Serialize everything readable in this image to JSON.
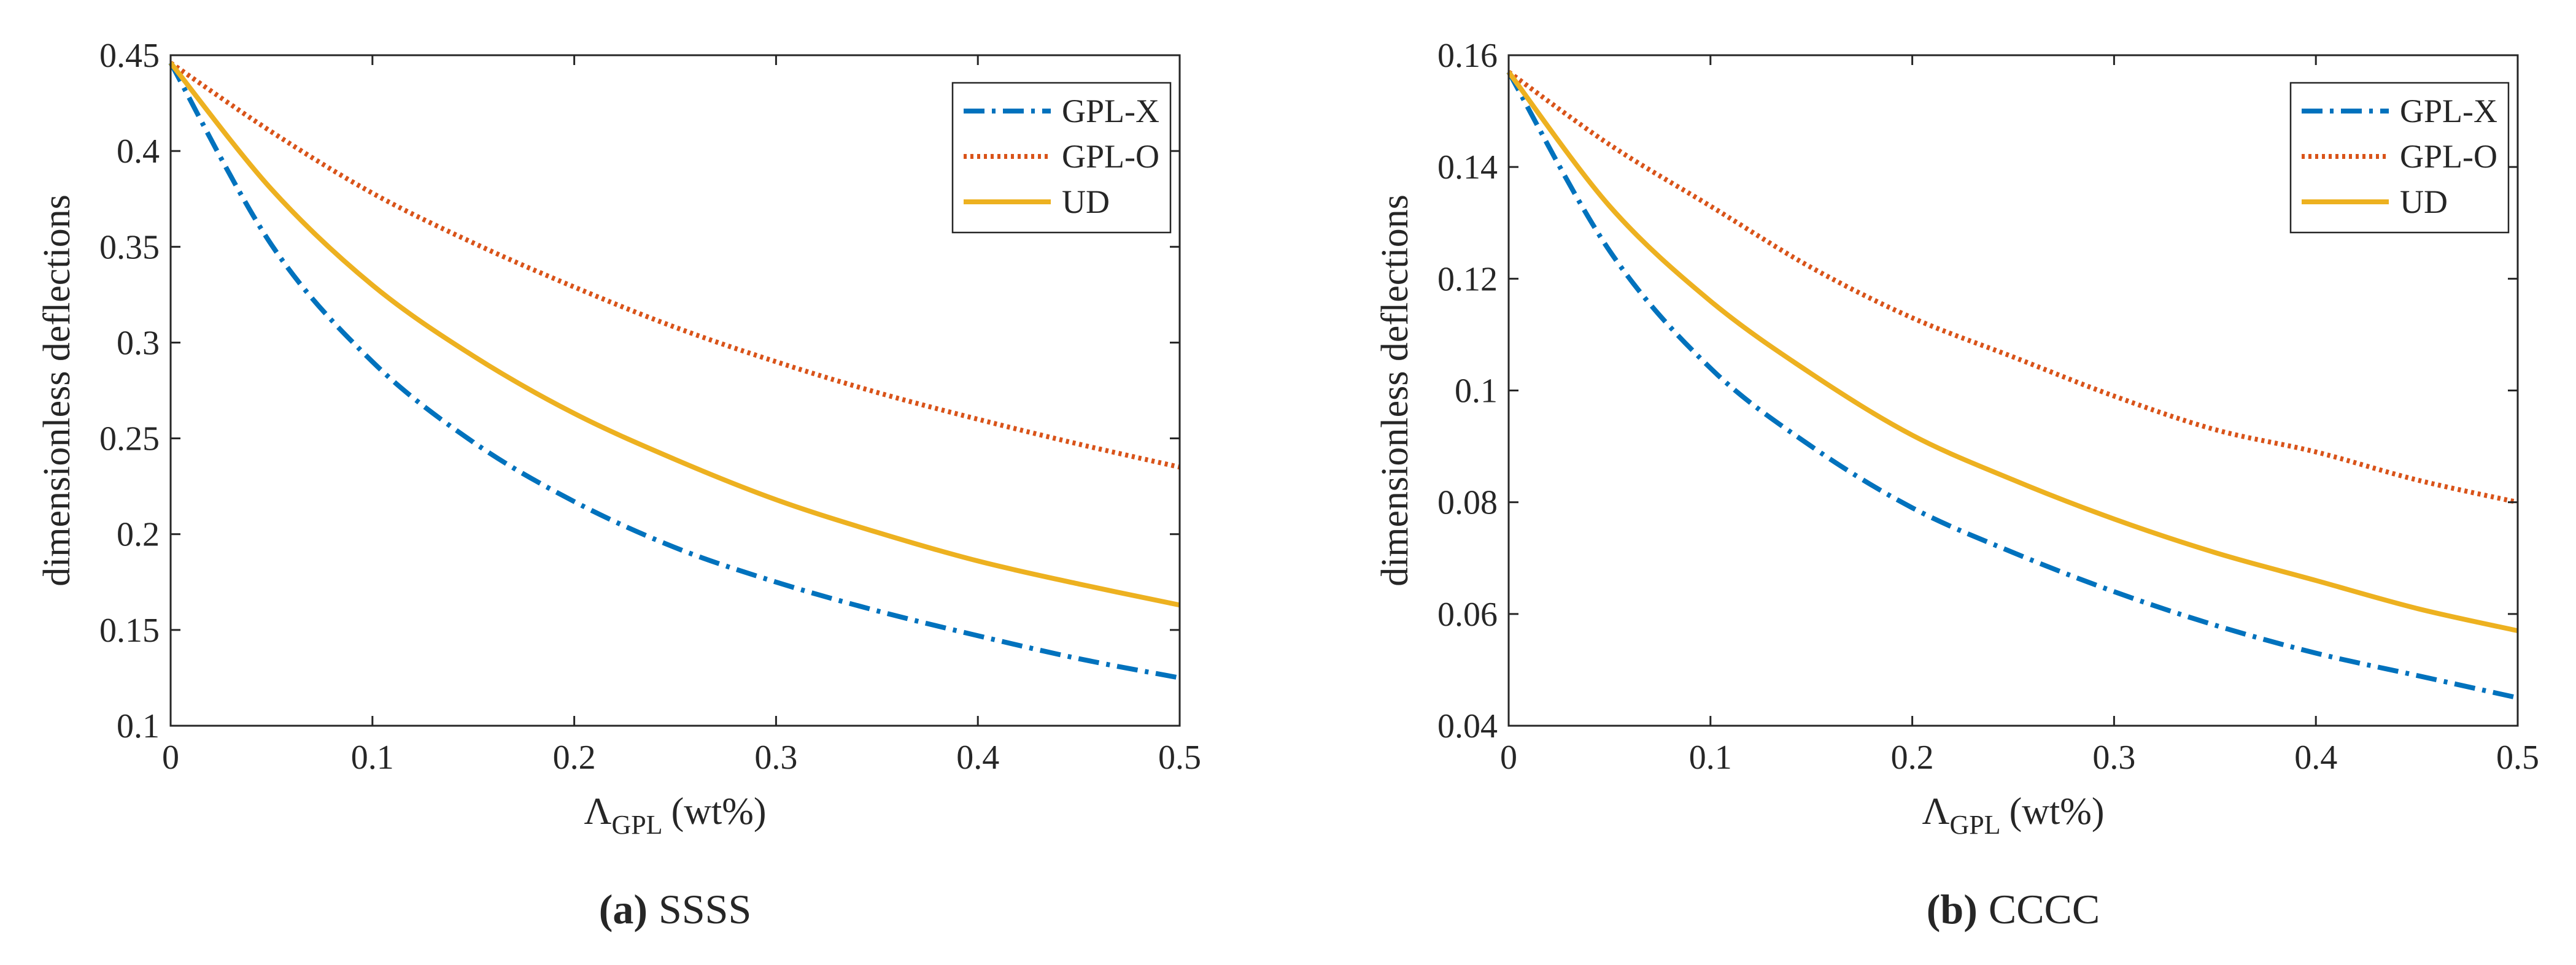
{
  "chart_data": [
    {
      "type": "line",
      "panel_label": "(a)",
      "caption": "SSSS",
      "xlabel_main": "Λ",
      "xlabel_sub": "GPL",
      "xlabel_unit": "(wt%)",
      "ylabel": "dimensionless deflections",
      "xlim": [
        0,
        0.5
      ],
      "ylim": [
        0.1,
        0.45
      ],
      "xticks": [
        0,
        0.1,
        0.2,
        0.3,
        0.4,
        0.5
      ],
      "xtick_labels": [
        "0",
        "0.1",
        "0.2",
        "0.3",
        "0.4",
        "0.5"
      ],
      "yticks": [
        0.1,
        0.15,
        0.2,
        0.25,
        0.3,
        0.35,
        0.4,
        0.45
      ],
      "ytick_labels": [
        "0.1",
        "0.15",
        "0.2",
        "0.25",
        "0.3",
        "0.35",
        "0.4",
        "0.45"
      ],
      "x": [
        0,
        0.05,
        0.1,
        0.15,
        0.2,
        0.25,
        0.3,
        0.35,
        0.4,
        0.45,
        0.5
      ],
      "legend_position": "top-right",
      "series": [
        {
          "name": "GPL-X",
          "color": "#0072BD",
          "style": "dashdot",
          "values": [
            0.446,
            0.351,
            0.29,
            0.248,
            0.217,
            0.193,
            0.175,
            0.16,
            0.147,
            0.135,
            0.125
          ]
        },
        {
          "name": "GPL-O",
          "color": "#D95319",
          "style": "dotted",
          "values": [
            0.446,
            0.41,
            0.378,
            0.352,
            0.329,
            0.308,
            0.29,
            0.274,
            0.26,
            0.247,
            0.235
          ]
        },
        {
          "name": "UD",
          "color": "#EDB120",
          "style": "solid",
          "values": [
            0.446,
            0.38,
            0.33,
            0.293,
            0.263,
            0.239,
            0.218,
            0.201,
            0.186,
            0.174,
            0.163
          ]
        }
      ]
    },
    {
      "type": "line",
      "panel_label": "(b)",
      "caption": "CCCC",
      "xlabel_main": "Λ",
      "xlabel_sub": "GPL",
      "xlabel_unit": "(wt%)",
      "ylabel": "dimensionless deflections",
      "xlim": [
        0,
        0.5
      ],
      "ylim": [
        0.04,
        0.16
      ],
      "xticks": [
        0,
        0.1,
        0.2,
        0.3,
        0.4,
        0.5
      ],
      "xtick_labels": [
        "0",
        "0.1",
        "0.2",
        "0.3",
        "0.4",
        "0.5"
      ],
      "yticks": [
        0.04,
        0.06,
        0.08,
        0.1,
        0.12,
        0.14,
        0.16
      ],
      "ytick_labels": [
        "0.04",
        "0.06",
        "0.08",
        "0.1",
        "0.12",
        "0.14",
        "0.16"
      ],
      "x": [
        0,
        0.05,
        0.1,
        0.15,
        0.2,
        0.25,
        0.3,
        0.35,
        0.4,
        0.45,
        0.5
      ],
      "legend_position": "top-right",
      "series": [
        {
          "name": "GPL-X",
          "color": "#0072BD",
          "style": "dashdot",
          "values": [
            0.157,
            0.125,
            0.104,
            0.09,
            0.079,
            0.071,
            0.064,
            0.058,
            0.053,
            0.049,
            0.045
          ]
        },
        {
          "name": "GPL-O",
          "color": "#D95319",
          "style": "dotted",
          "values": [
            0.157,
            0.144,
            0.133,
            0.122,
            0.113,
            0.106,
            0.099,
            0.093,
            0.089,
            0.084,
            0.08
          ]
        },
        {
          "name": "UD",
          "color": "#EDB120",
          "style": "solid",
          "values": [
            0.157,
            0.133,
            0.116,
            0.103,
            0.092,
            0.084,
            0.077,
            0.071,
            0.066,
            0.061,
            0.057
          ]
        }
      ]
    }
  ]
}
